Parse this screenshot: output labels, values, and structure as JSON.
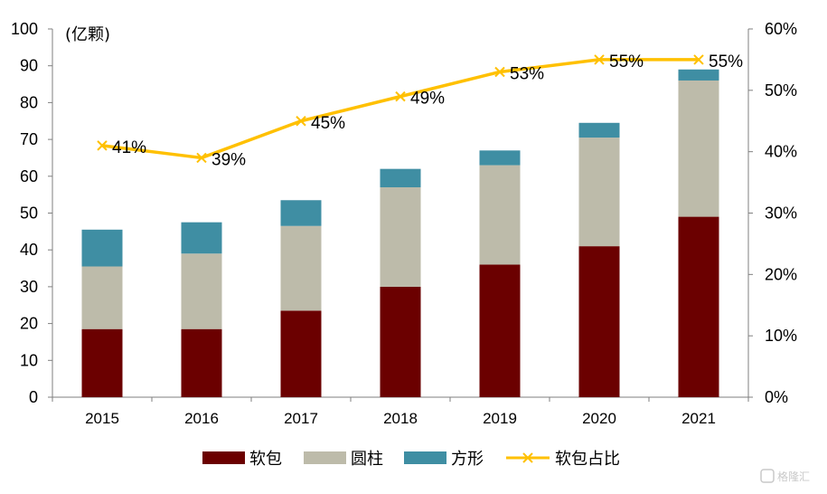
{
  "chart_data": {
    "type": "bar",
    "stacked": true,
    "categories": [
      "2015",
      "2016",
      "2017",
      "2018",
      "2019",
      "2020",
      "2021"
    ],
    "series": [
      {
        "name": "软包",
        "type": "bar",
        "axis": "left",
        "color": "#6b0000",
        "values": [
          18.5,
          18.5,
          23.5,
          30,
          36,
          41,
          49
        ]
      },
      {
        "name": "圆柱",
        "type": "bar",
        "axis": "left",
        "color": "#bdbbaa",
        "values": [
          17,
          20.5,
          23,
          27,
          27,
          29.5,
          37
        ]
      },
      {
        "name": "方形",
        "type": "bar",
        "axis": "left",
        "color": "#3f8ea3",
        "values": [
          10,
          8.5,
          7,
          5,
          4,
          4,
          3
        ]
      },
      {
        "name": "软包占比",
        "type": "line",
        "axis": "right",
        "color": "#ffc000",
        "marker": "x",
        "values": [
          41,
          39,
          45,
          49,
          53,
          55,
          55
        ],
        "labels": [
          "41%",
          "39%",
          "45%",
          "49%",
          "53%",
          "55%",
          "55%"
        ]
      }
    ],
    "yunit": "(亿颗)",
    "ylim": [
      0,
      100
    ],
    "yticks": [
      "0",
      "10",
      "20",
      "30",
      "40",
      "50",
      "60",
      "70",
      "80",
      "90",
      "100"
    ],
    "y2lim": [
      0,
      60
    ],
    "y2ticks": [
      "0%",
      "10%",
      "20%",
      "30%",
      "40%",
      "50%",
      "60%"
    ],
    "legend_position": "bottom",
    "grid": false
  },
  "watermark": "格隆汇"
}
